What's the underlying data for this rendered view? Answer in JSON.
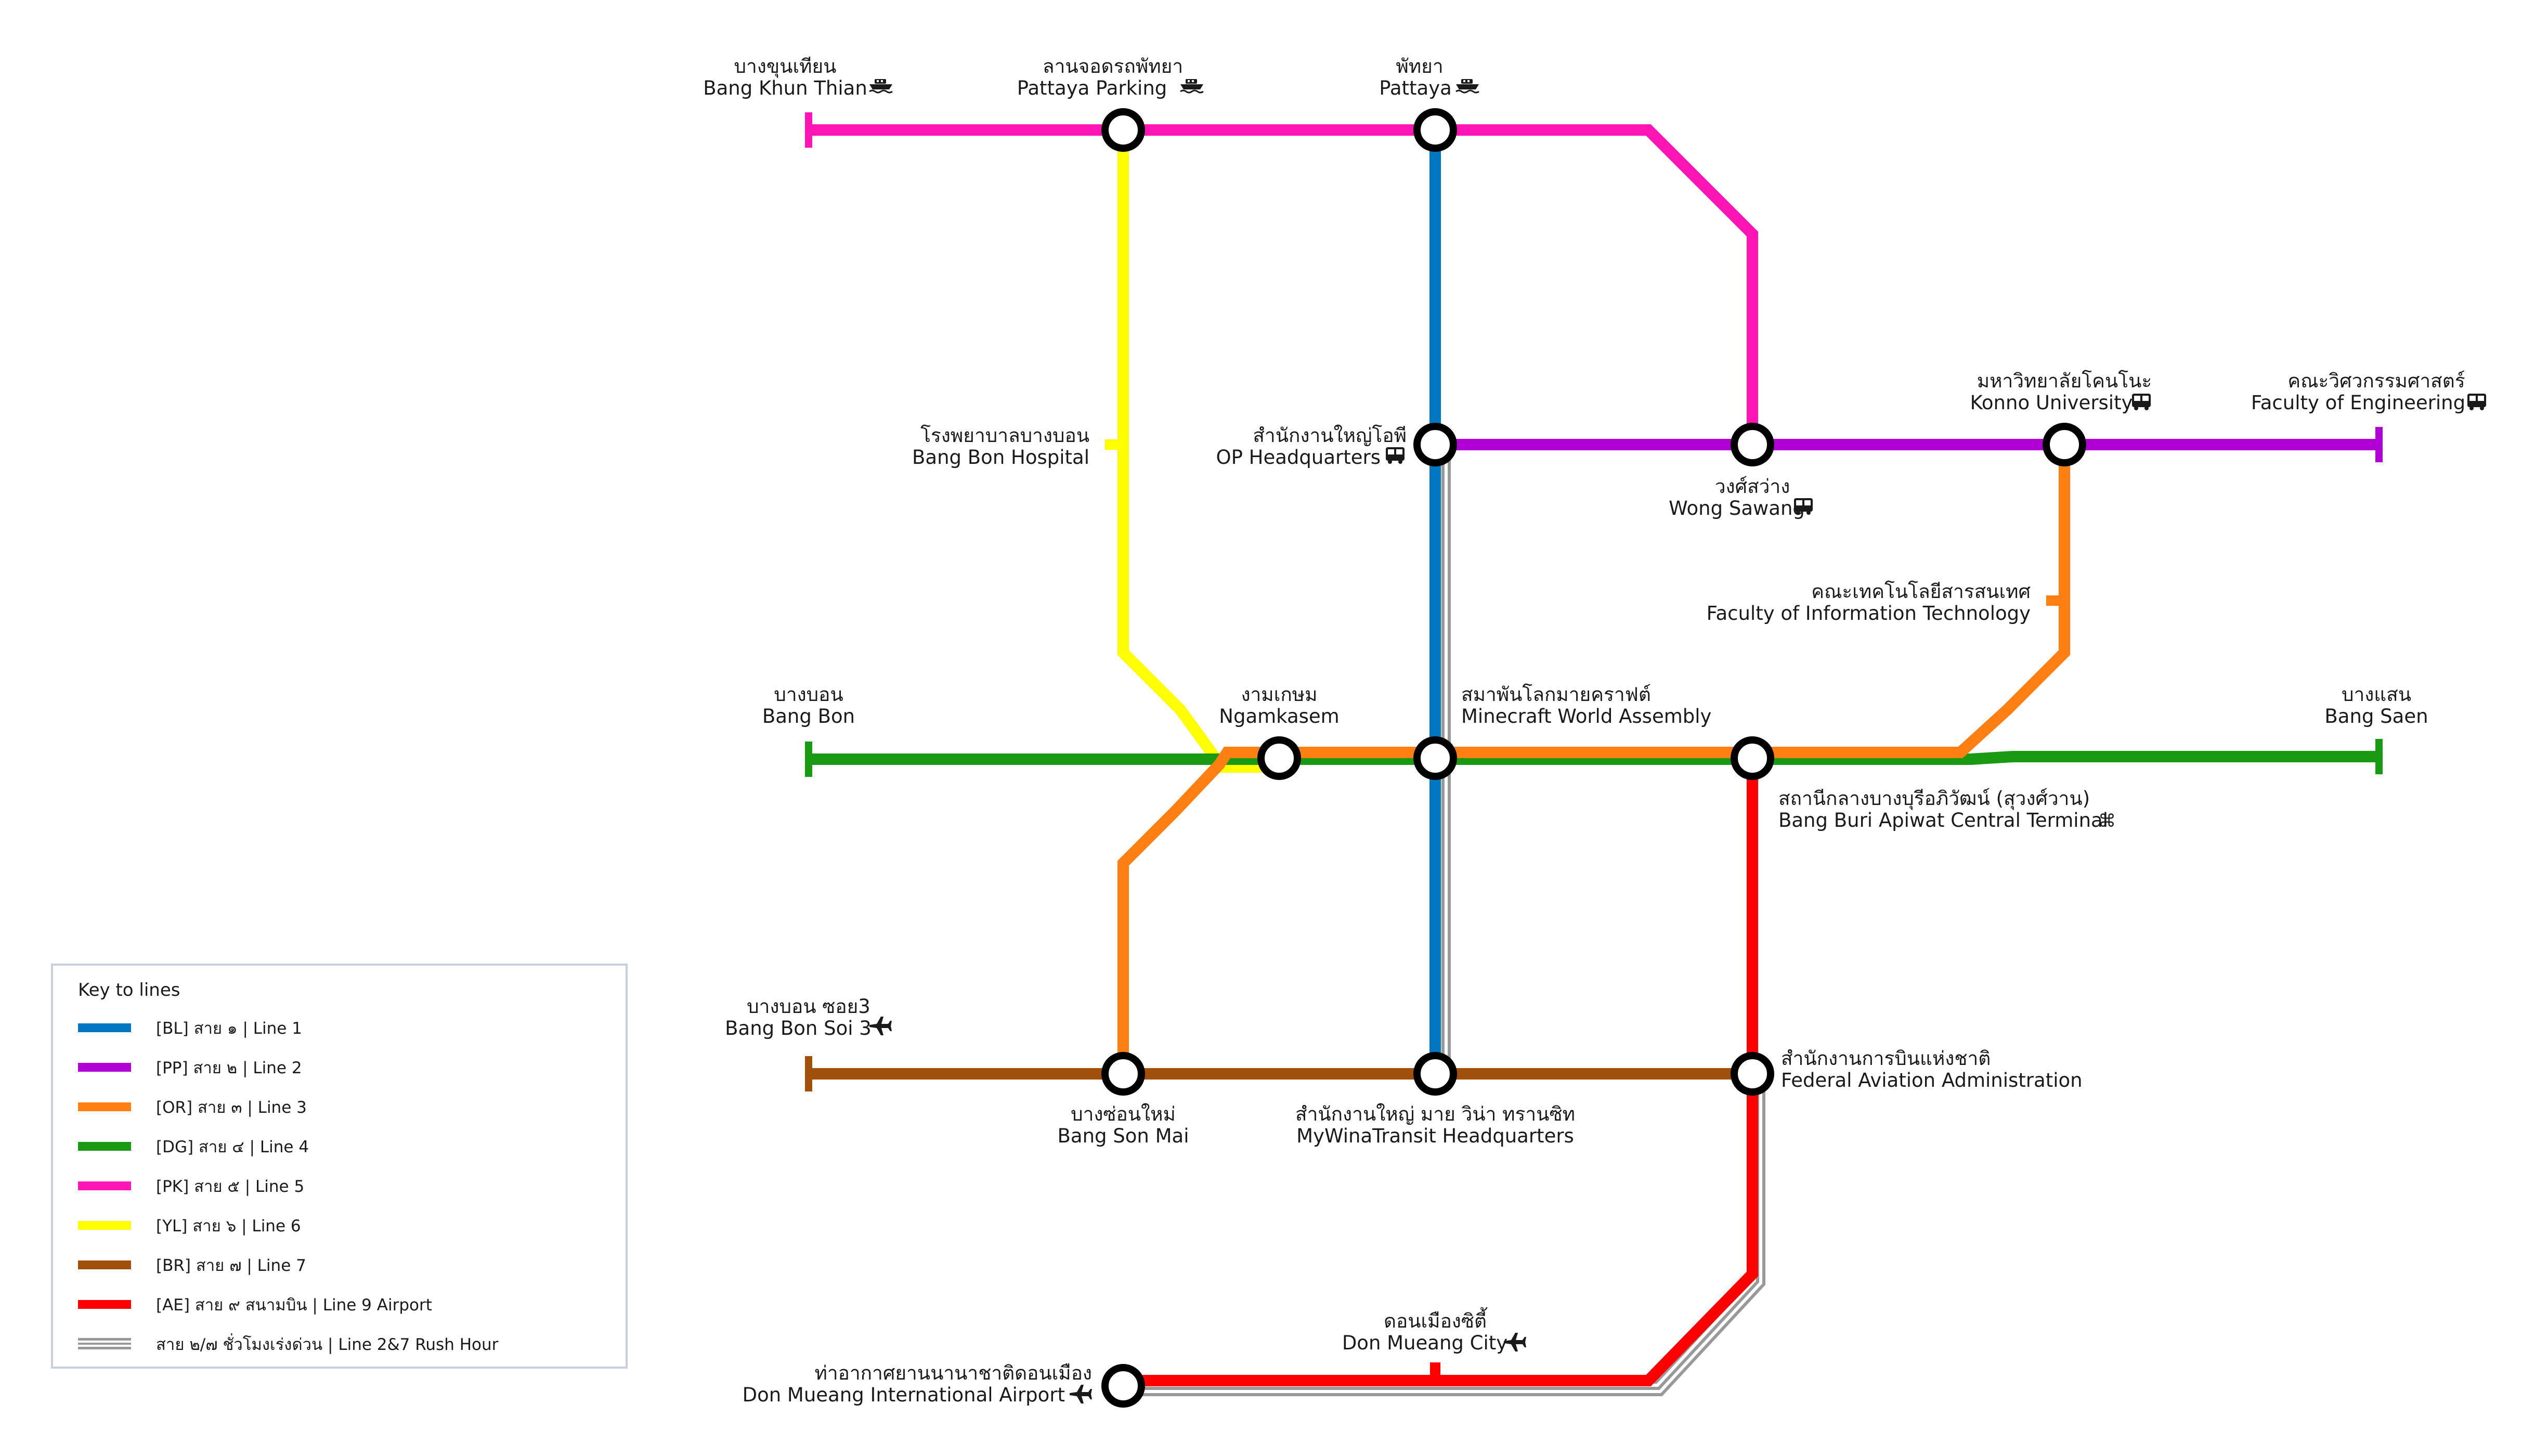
{
  "colors": {
    "BL": "#0077c0",
    "PP": "#b100d6",
    "OR": "#ff7f12",
    "DG": "#1a9a12",
    "PK": "#ff14b4",
    "YL": "#ffff00",
    "BR": "#a0500a",
    "AE": "#ff0000",
    "RH": "#999999"
  },
  "stations": {
    "bang_khun_thian": {
      "th": "บางขุนเทียน",
      "en": "Bang Khun Thian",
      "icon": "ferry-icon"
    },
    "pattaya_parking": {
      "th": "ลานจอดรถพัทยา",
      "en": "Pattaya Parking",
      "icon": "ferry-icon"
    },
    "pattaya": {
      "th": "พัทยา",
      "en": "Pattaya",
      "icon": "ferry-icon"
    },
    "bang_bon_hospital": {
      "th": "โรงพยาบาลบางบอน",
      "en": "Bang Bon Hospital"
    },
    "op_hq": {
      "th": "สำนักงานใหญ่โอพี",
      "en": "OP Headquarters",
      "icon": "bus-icon"
    },
    "wong_sawang": {
      "th": "วงศ์สว่าง",
      "en": "Wong Sawang",
      "icon": "bus-icon"
    },
    "konno_university": {
      "th": "มหาวิทยาลัยโคนโนะ",
      "en": "Konno University",
      "icon": "bus-icon"
    },
    "faculty_engineering": {
      "th": "คณะวิศวกรรมศาสตร์",
      "en": "Faculty of Engineering",
      "icon": "bus-icon"
    },
    "faculty_it": {
      "th": "คณะเทคโนโลยีสารสนเทศ",
      "en": "Faculty of Information Technology"
    },
    "bang_bon": {
      "th": "บางบอน",
      "en": "Bang Bon"
    },
    "ngamkasem": {
      "th": "งามเกษม",
      "en": "Ngamkasem"
    },
    "minecraft_world_assembly": {
      "th": "สมาพันโลกมายคราฟต์",
      "en": "Minecraft World Assembly"
    },
    "bang_saen": {
      "th": "บางแสน",
      "en": "Bang Saen"
    },
    "bang_buri_terminal": {
      "th": "สถานีกลางบางบุรีอภิวัฒน์ (สุวงศ์วาน)",
      "en": "Bang Buri Apiwat Central Terminal",
      "icon": "interchange-icon"
    },
    "bang_bon_soi3": {
      "th": "บางบอน ซอย3",
      "en": "Bang Bon Soi 3",
      "icon": "airplane-icon"
    },
    "bang_son_mai": {
      "th": "บางซ่อนใหม่",
      "en": "Bang Son Mai"
    },
    "mywinatransit_hq": {
      "th": "สำนักงานใหญ่ มาย วิน่า ทรานซิท",
      "en": "MyWinaTransit Headquarters"
    },
    "faa": {
      "th": "สำนักงานการบินแห่งชาติ",
      "en": "Federal Aviation Administration"
    },
    "don_mueang_city": {
      "th": "ดอนเมืองซิตี้",
      "en": "Don Mueang City",
      "icon": "airplane-icon"
    },
    "don_mueang_airport": {
      "th": "ท่าอากาศยานนานาชาติดอนเมือง",
      "en": "Don Mueang International Airport",
      "icon": "airplane-icon"
    }
  },
  "legend": {
    "title": "Key to lines",
    "items": [
      {
        "code": "BL",
        "label": "[BL] สาย ๑ | Line 1"
      },
      {
        "code": "PP",
        "label": "[PP] สาย ๒ | Line 2"
      },
      {
        "code": "OR",
        "label": "[OR] สาย ๓ | Line 3"
      },
      {
        "code": "DG",
        "label": "[DG] สาย ๔ | Line 4"
      },
      {
        "code": "PK",
        "label": "[PK] สาย ๕ | Line 5"
      },
      {
        "code": "YL",
        "label": "[YL] สาย ๖ | Line 6"
      },
      {
        "code": "BR",
        "label": "[BR] สาย ๗ | Line 7"
      },
      {
        "code": "AE",
        "label": "[AE] สาย ๙ สนามบิน | Line 9 Airport"
      },
      {
        "code": "RH",
        "label": "สาย ๒/๗ ชั่วโมงเร่งด่วน | Line 2&7 Rush Hour"
      }
    ]
  }
}
